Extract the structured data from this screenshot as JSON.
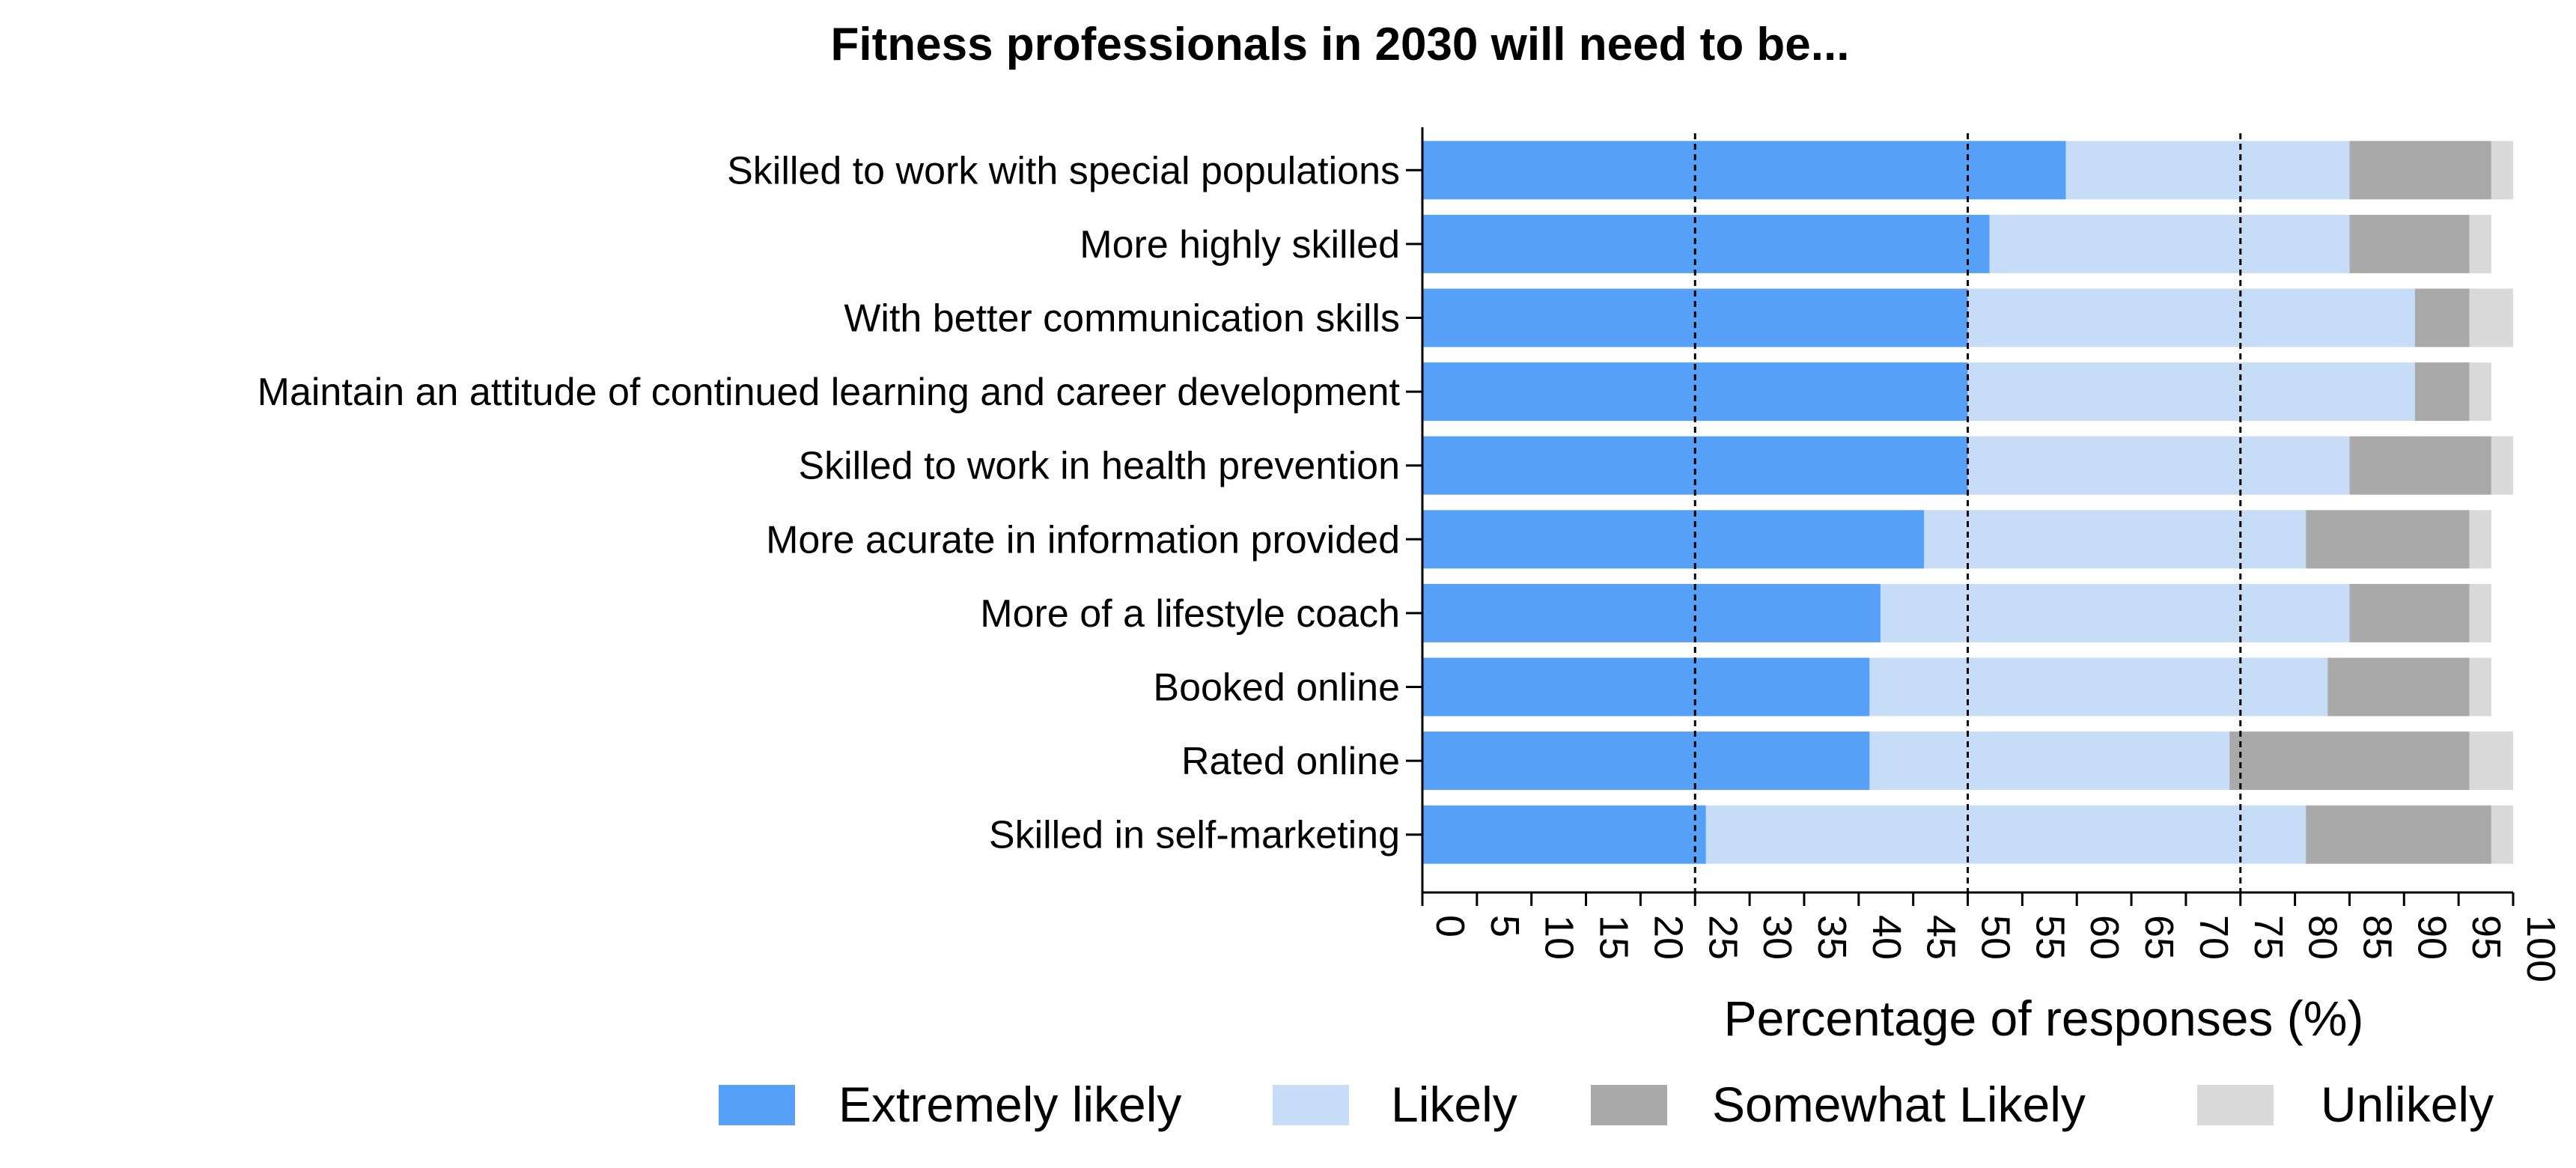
{
  "chart_data": {
    "type": "bar",
    "orientation": "horizontal",
    "stacked": true,
    "title": "Fitness professionals in 2030 will need to be...",
    "xlabel": "Percentage of responses (%)",
    "ylabel": "",
    "xlim": [
      0,
      100
    ],
    "x_ticks": [
      "0",
      "5",
      "10",
      "15",
      "20",
      "25",
      "30",
      "35",
      "40",
      "45",
      "50",
      "55",
      "60",
      "65",
      "70",
      "75",
      "80",
      "85",
      "90",
      "95",
      "100"
    ],
    "reference_lines": [
      25,
      50,
      75
    ],
    "legend_position": "bottom",
    "categories": [
      "Skilled to work with special populations",
      "More highly skilled",
      "With better communication skills",
      "Maintain an attitude of continued learning and career development",
      "Skilled to work in health prevention",
      "More acurate in information provided",
      "More of a lifestyle coach",
      "Booked online",
      "Rated online",
      "Skilled in self-marketing"
    ],
    "series": [
      {
        "name": "Extremely likely",
        "color": "#56a0f8",
        "values": [
          59,
          52,
          50,
          50,
          50,
          46,
          42,
          41,
          41,
          26
        ]
      },
      {
        "name": "Likely",
        "color": "#c6dcf7",
        "values": [
          26,
          33,
          41,
          41,
          35,
          35,
          43,
          42,
          33,
          55
        ]
      },
      {
        "name": "Somewhat Likely",
        "color": "#a9a9a9",
        "values": [
          13,
          11,
          5,
          5,
          13,
          15,
          11,
          13,
          22,
          17
        ]
      },
      {
        "name": "Unlikely",
        "color": "#d9d9d9",
        "values": [
          2,
          2,
          4,
          2,
          2,
          2,
          2,
          2,
          4,
          2
        ]
      }
    ]
  }
}
